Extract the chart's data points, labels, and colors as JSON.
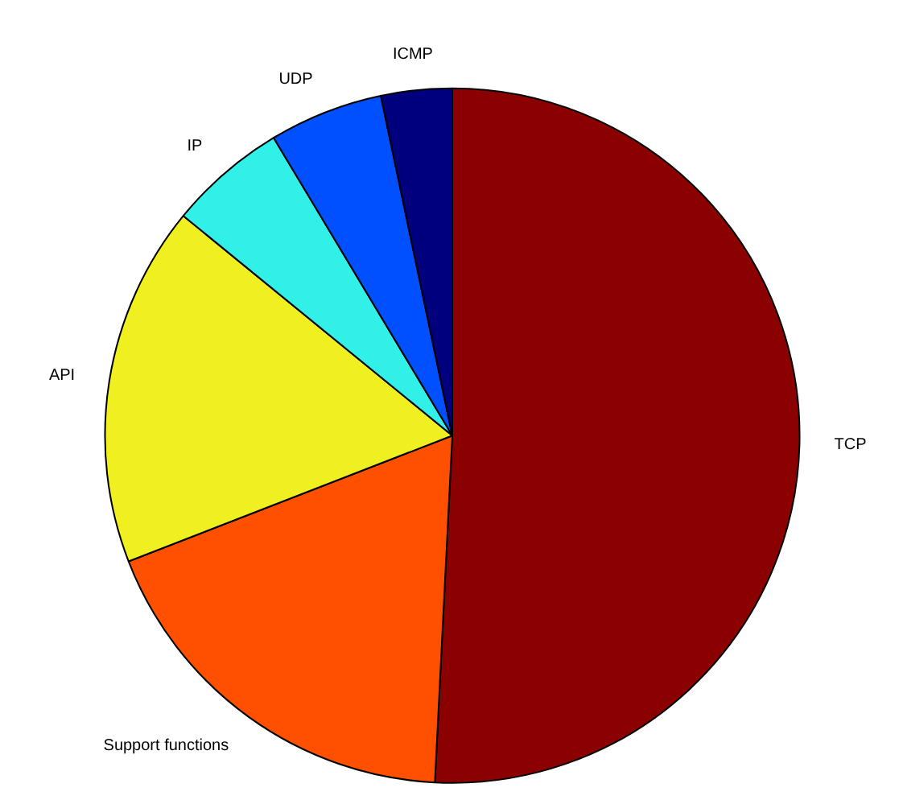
{
  "chart_data": {
    "type": "pie",
    "categories": [
      "TCP",
      "Support functions",
      "API",
      "IP",
      "UDP",
      "ICMP"
    ],
    "values": [
      50.8,
      18.3,
      16.8,
      5.5,
      5.3,
      3.3
    ],
    "colors": [
      "#8b0000",
      "#ff5000",
      "#f0f020",
      "#30f0e8",
      "#0050ff",
      "#00007f"
    ]
  }
}
